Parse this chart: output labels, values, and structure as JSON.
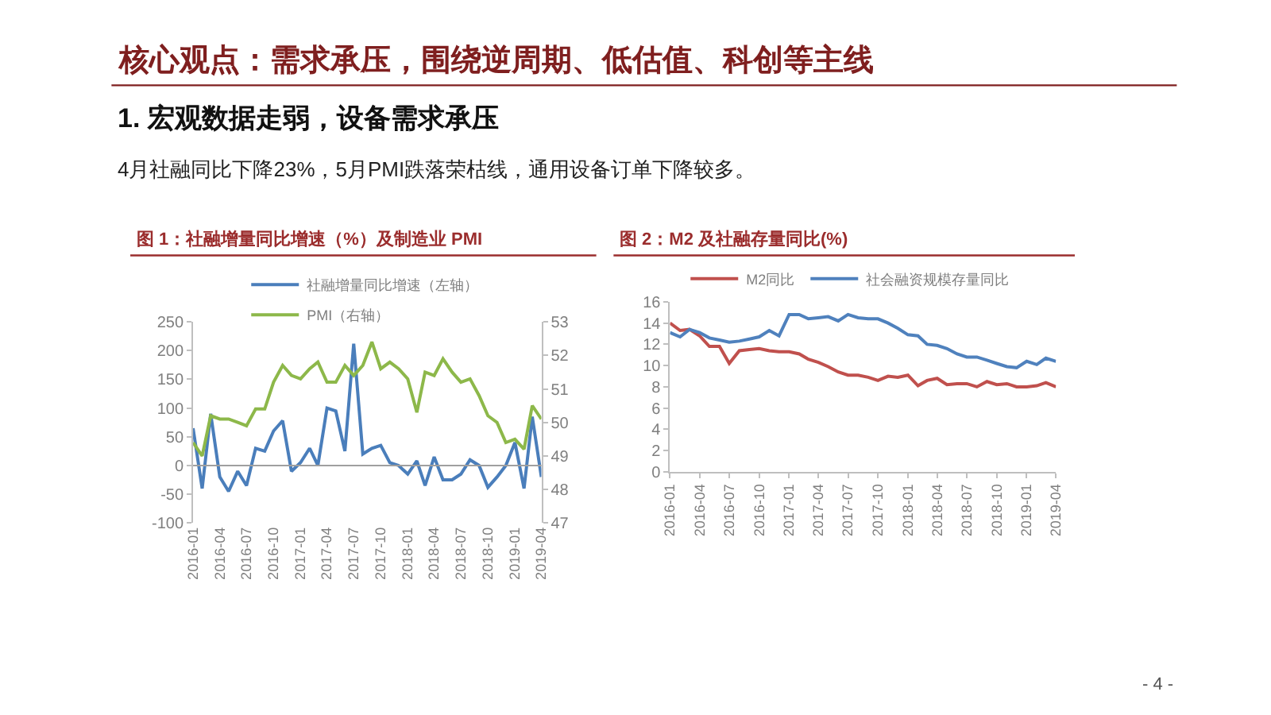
{
  "chart_data": [
    {
      "type": "other",
      "title": "核心观点：需求承压，围绕逆周期、低估值、科创等主线",
      "subtitle": "1. 宏观数据走弱，设备需求承压",
      "annotations": [
        "4月社融同比下降23%，5月PMI跌落荣枯线，通用设备订单下降较多。",
        "- 4 -"
      ]
    },
    {
      "type": "line",
      "title": "图 1：社融增量同比增速（%）及制造业 PMI",
      "x": [
        "2016-01",
        "2016-02",
        "2016-03",
        "2016-04",
        "2016-05",
        "2016-06",
        "2016-07",
        "2016-08",
        "2016-09",
        "2016-10",
        "2016-11",
        "2016-12",
        "2017-01",
        "2017-02",
        "2017-03",
        "2017-04",
        "2017-05",
        "2017-06",
        "2017-07",
        "2017-08",
        "2017-09",
        "2017-10",
        "2017-11",
        "2017-12",
        "2018-01",
        "2018-02",
        "2018-03",
        "2018-04",
        "2018-05",
        "2018-06",
        "2018-07",
        "2018-08",
        "2018-09",
        "2018-10",
        "2018-11",
        "2018-12",
        "2019-01",
        "2019-02",
        "2019-03",
        "2019-04"
      ],
      "series": [
        {
          "name": "社融增量同比增速（左轴）",
          "color": "#4a7ebb",
          "values": [
            65,
            -40,
            90,
            -20,
            -45,
            -10,
            -35,
            30,
            25,
            60,
            78,
            -10,
            5,
            30,
            0,
            100,
            95,
            25,
            212,
            20,
            30,
            35,
            5,
            0,
            -15,
            8,
            -35,
            15,
            -25,
            -25,
            -15,
            10,
            0,
            -38,
            -20,
            0,
            40,
            -40,
            85,
            -20
          ]
        },
        {
          "name": "PMI（右轴）",
          "color": "#8db84a",
          "axis": "y2",
          "values": [
            49.4,
            49.0,
            50.2,
            50.1,
            50.1,
            50.0,
            49.9,
            50.4,
            50.4,
            51.2,
            51.7,
            51.4,
            51.3,
            51.6,
            51.8,
            51.2,
            51.2,
            51.7,
            51.4,
            51.7,
            52.4,
            51.6,
            51.8,
            51.6,
            51.3,
            50.3,
            51.5,
            51.4,
            51.9,
            51.5,
            51.2,
            51.3,
            50.8,
            50.2,
            50.0,
            49.4,
            49.5,
            49.2,
            50.5,
            50.1
          ]
        }
      ],
      "xlim": [
        "2016-01",
        "2019-04"
      ],
      "xticks": [
        {
          "value": "2016-01",
          "label": "2016-01"
        },
        {
          "value": "2016-04",
          "label": "2016-04"
        },
        {
          "value": "2016-07",
          "label": "2016-07"
        },
        {
          "value": "2016-10",
          "label": "2016-10"
        },
        {
          "value": "2017-01",
          "label": "2017-01"
        },
        {
          "value": "2017-04",
          "label": "2017-04"
        },
        {
          "value": "2017-07",
          "label": "2017-07"
        },
        {
          "value": "2017-10",
          "label": "2017-10"
        },
        {
          "value": "2018-01",
          "label": "2018-01"
        },
        {
          "value": "2018-04",
          "label": "2018-04"
        },
        {
          "value": "2018-07",
          "label": "2018-07"
        },
        {
          "value": "2018-10",
          "label": "2018-10"
        },
        {
          "value": "2019-01",
          "label": "2019-01"
        },
        {
          "value": "2019-04",
          "label": "2019-04"
        }
      ],
      "ylim": [
        -100,
        250
      ],
      "yticks": [
        -100,
        -50,
        0,
        50,
        100,
        150,
        200,
        250
      ],
      "y2lim": [
        47,
        53
      ],
      "y2ticks": [
        47,
        48,
        49,
        50,
        51,
        52,
        53
      ],
      "ref_lines": [
        {
          "axis": "y",
          "value": 0,
          "color": "#9f9f9f"
        }
      ],
      "grid": false,
      "legend": "top left",
      "marker": "none",
      "line_style": "solid"
    },
    {
      "type": "line",
      "title": "图 2：M2 及社融存量同比(%)",
      "x": [
        "2016-01",
        "2016-02",
        "2016-03",
        "2016-04",
        "2016-05",
        "2016-06",
        "2016-07",
        "2016-08",
        "2016-09",
        "2016-10",
        "2016-11",
        "2016-12",
        "2017-01",
        "2017-02",
        "2017-03",
        "2017-04",
        "2017-05",
        "2017-06",
        "2017-07",
        "2017-08",
        "2017-09",
        "2017-10",
        "2017-11",
        "2017-12",
        "2018-01",
        "2018-02",
        "2018-03",
        "2018-04",
        "2018-05",
        "2018-06",
        "2018-07",
        "2018-08",
        "2018-09",
        "2018-10",
        "2018-11",
        "2018-12",
        "2019-01",
        "2019-02",
        "2019-03",
        "2019-04"
      ],
      "series": [
        {
          "name": "M2同比",
          "color": "#c0504d",
          "values": [
            14.0,
            13.3,
            13.4,
            12.8,
            11.8,
            11.8,
            10.2,
            11.4,
            11.5,
            11.6,
            11.4,
            11.3,
            11.3,
            11.1,
            10.6,
            10.3,
            9.9,
            9.4,
            9.1,
            9.1,
            8.9,
            8.6,
            9.0,
            8.9,
            9.1,
            8.1,
            8.6,
            8.8,
            8.2,
            8.3,
            8.3,
            8.0,
            8.5,
            8.2,
            8.3,
            8.0,
            8.0,
            8.1,
            8.4,
            8.0
          ]
        },
        {
          "name": "社会融资规模存量同比",
          "color": "#4f81bd",
          "values": [
            13.1,
            12.7,
            13.4,
            13.1,
            12.6,
            12.4,
            12.2,
            12.3,
            12.5,
            12.7,
            13.3,
            12.8,
            14.8,
            14.8,
            14.4,
            14.5,
            14.6,
            14.2,
            14.8,
            14.5,
            14.4,
            14.4,
            14.0,
            13.5,
            12.9,
            12.8,
            12.0,
            11.9,
            11.6,
            11.1,
            10.8,
            10.8,
            10.5,
            10.2,
            9.9,
            9.8,
            10.4,
            10.1,
            10.7,
            10.4
          ]
        }
      ],
      "xlim": [
        "2016-01",
        "2019-04"
      ],
      "xticks": [
        {
          "value": "2016-01",
          "label": "2016-01"
        },
        {
          "value": "2016-04",
          "label": "2016-04"
        },
        {
          "value": "2016-07",
          "label": "2016-07"
        },
        {
          "value": "2016-10",
          "label": "2016-10"
        },
        {
          "value": "2017-01",
          "label": "2017-01"
        },
        {
          "value": "2017-04",
          "label": "2017-04"
        },
        {
          "value": "2017-07",
          "label": "2017-07"
        },
        {
          "value": "2017-10",
          "label": "2017-10"
        },
        {
          "value": "2018-01",
          "label": "2018-01"
        },
        {
          "value": "2018-04",
          "label": "2018-04"
        },
        {
          "value": "2018-07",
          "label": "2018-07"
        },
        {
          "value": "2018-10",
          "label": "2018-10"
        },
        {
          "value": "2019-01",
          "label": "2019-01"
        },
        {
          "value": "2019-04",
          "label": "2019-04"
        }
      ],
      "ylim": [
        0,
        16
      ],
      "yticks": [
        0,
        2,
        4,
        6,
        8,
        10,
        12,
        14,
        16
      ],
      "grid": false,
      "legend": "top",
      "marker": "none",
      "line_style": "solid"
    }
  ]
}
